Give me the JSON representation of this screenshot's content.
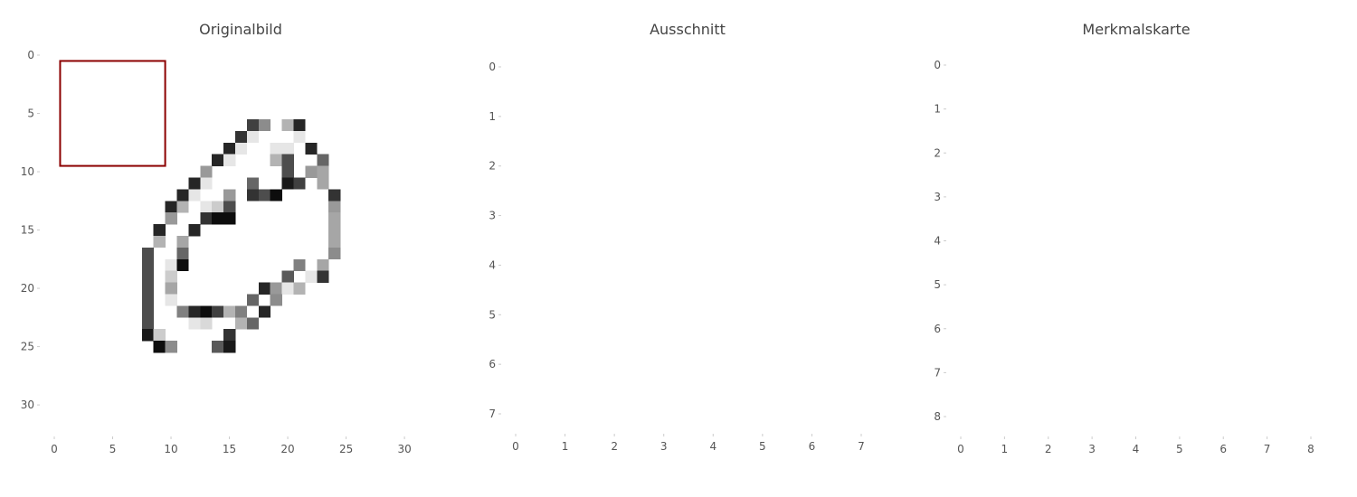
{
  "colors": {
    "background": "#ffffff",
    "ink": "#000000",
    "highlight_box": "#8b0000",
    "tick_text": "#555555",
    "title_text": "#444444"
  },
  "chart_data": [
    {
      "type": "heatmap",
      "title": "Originalbild",
      "colormap": "gray_r",
      "value_range": [
        0,
        1
      ],
      "grid_size": [
        32,
        32
      ],
      "xlim": [
        0,
        31
      ],
      "ylim": [
        0,
        31
      ],
      "x_ticks": [
        "0",
        "5",
        "10",
        "15",
        "20",
        "25",
        "30"
      ],
      "y_ticks": [
        "0",
        "5",
        "10",
        "15",
        "20",
        "25",
        "30"
      ],
      "pixels": [
        {
          "row": 6,
          "col": 17,
          "v": 0.75
        },
        {
          "row": 6,
          "col": 18,
          "v": 0.45
        },
        {
          "row": 6,
          "col": 20,
          "v": 0.3
        },
        {
          "row": 6,
          "col": 21,
          "v": 0.85
        },
        {
          "row": 7,
          "col": 16,
          "v": 0.8
        },
        {
          "row": 7,
          "col": 17,
          "v": 0.1
        },
        {
          "row": 7,
          "col": 21,
          "v": 0.1
        },
        {
          "row": 8,
          "col": 15,
          "v": 0.85
        },
        {
          "row": 8,
          "col": 16,
          "v": 0.1
        },
        {
          "row": 8,
          "col": 19,
          "v": 0.1
        },
        {
          "row": 8,
          "col": 20,
          "v": 0.1
        },
        {
          "row": 8,
          "col": 22,
          "v": 0.85
        },
        {
          "row": 9,
          "col": 14,
          "v": 0.85
        },
        {
          "row": 9,
          "col": 15,
          "v": 0.1
        },
        {
          "row": 9,
          "col": 19,
          "v": 0.3
        },
        {
          "row": 9,
          "col": 20,
          "v": 0.7
        },
        {
          "row": 9,
          "col": 23,
          "v": 0.6
        },
        {
          "row": 10,
          "col": 13,
          "v": 0.4
        },
        {
          "row": 10,
          "col": 20,
          "v": 0.7
        },
        {
          "row": 10,
          "col": 22,
          "v": 0.4
        },
        {
          "row": 10,
          "col": 23,
          "v": 0.35
        },
        {
          "row": 11,
          "col": 12,
          "v": 0.85
        },
        {
          "row": 11,
          "col": 13,
          "v": 0.1
        },
        {
          "row": 11,
          "col": 17,
          "v": 0.6
        },
        {
          "row": 11,
          "col": 20,
          "v": 0.9
        },
        {
          "row": 11,
          "col": 21,
          "v": 0.75
        },
        {
          "row": 11,
          "col": 23,
          "v": 0.35
        },
        {
          "row": 12,
          "col": 11,
          "v": 0.85
        },
        {
          "row": 12,
          "col": 12,
          "v": 0.1
        },
        {
          "row": 12,
          "col": 15,
          "v": 0.4
        },
        {
          "row": 12,
          "col": 17,
          "v": 0.8
        },
        {
          "row": 12,
          "col": 18,
          "v": 0.7
        },
        {
          "row": 12,
          "col": 19,
          "v": 0.95
        },
        {
          "row": 12,
          "col": 24,
          "v": 0.8
        },
        {
          "row": 13,
          "col": 10,
          "v": 0.85
        },
        {
          "row": 13,
          "col": 11,
          "v": 0.3
        },
        {
          "row": 13,
          "col": 13,
          "v": 0.1
        },
        {
          "row": 13,
          "col": 14,
          "v": 0.2
        },
        {
          "row": 13,
          "col": 15,
          "v": 0.7
        },
        {
          "row": 13,
          "col": 24,
          "v": 0.4
        },
        {
          "row": 14,
          "col": 10,
          "v": 0.4
        },
        {
          "row": 14,
          "col": 13,
          "v": 0.8
        },
        {
          "row": 14,
          "col": 14,
          "v": 0.95
        },
        {
          "row": 14,
          "col": 15,
          "v": 0.95
        },
        {
          "row": 14,
          "col": 24,
          "v": 0.35
        },
        {
          "row": 15,
          "col": 9,
          "v": 0.85
        },
        {
          "row": 15,
          "col": 12,
          "v": 0.85
        },
        {
          "row": 15,
          "col": 24,
          "v": 0.35
        },
        {
          "row": 16,
          "col": 9,
          "v": 0.3
        },
        {
          "row": 16,
          "col": 11,
          "v": 0.35
        },
        {
          "row": 16,
          "col": 24,
          "v": 0.35
        },
        {
          "row": 17,
          "col": 8,
          "v": 0.7
        },
        {
          "row": 17,
          "col": 11,
          "v": 0.6
        },
        {
          "row": 17,
          "col": 24,
          "v": 0.45
        },
        {
          "row": 18,
          "col": 8,
          "v": 0.7
        },
        {
          "row": 18,
          "col": 10,
          "v": 0.1
        },
        {
          "row": 18,
          "col": 11,
          "v": 0.95
        },
        {
          "row": 18,
          "col": 21,
          "v": 0.5
        },
        {
          "row": 18,
          "col": 23,
          "v": 0.35
        },
        {
          "row": 19,
          "col": 8,
          "v": 0.7
        },
        {
          "row": 19,
          "col": 10,
          "v": 0.2
        },
        {
          "row": 19,
          "col": 20,
          "v": 0.65
        },
        {
          "row": 19,
          "col": 22,
          "v": 0.1
        },
        {
          "row": 19,
          "col": 23,
          "v": 0.8
        },
        {
          "row": 20,
          "col": 8,
          "v": 0.7
        },
        {
          "row": 20,
          "col": 10,
          "v": 0.35
        },
        {
          "row": 20,
          "col": 18,
          "v": 0.85
        },
        {
          "row": 20,
          "col": 19,
          "v": 0.4
        },
        {
          "row": 20,
          "col": 20,
          "v": 0.1
        },
        {
          "row": 20,
          "col": 21,
          "v": 0.3
        },
        {
          "row": 21,
          "col": 8,
          "v": 0.7
        },
        {
          "row": 21,
          "col": 10,
          "v": 0.1
        },
        {
          "row": 21,
          "col": 17,
          "v": 0.6
        },
        {
          "row": 21,
          "col": 19,
          "v": 0.45
        },
        {
          "row": 22,
          "col": 8,
          "v": 0.7
        },
        {
          "row": 22,
          "col": 11,
          "v": 0.5
        },
        {
          "row": 22,
          "col": 12,
          "v": 0.85
        },
        {
          "row": 22,
          "col": 13,
          "v": 0.95
        },
        {
          "row": 22,
          "col": 14,
          "v": 0.75
        },
        {
          "row": 22,
          "col": 15,
          "v": 0.3
        },
        {
          "row": 22,
          "col": 16,
          "v": 0.5
        },
        {
          "row": 22,
          "col": 18,
          "v": 0.85
        },
        {
          "row": 23,
          "col": 8,
          "v": 0.7
        },
        {
          "row": 23,
          "col": 12,
          "v": 0.1
        },
        {
          "row": 23,
          "col": 13,
          "v": 0.15
        },
        {
          "row": 23,
          "col": 16,
          "v": 0.3
        },
        {
          "row": 23,
          "col": 17,
          "v": 0.6
        },
        {
          "row": 24,
          "col": 8,
          "v": 0.9
        },
        {
          "row": 24,
          "col": 9,
          "v": 0.2
        },
        {
          "row": 24,
          "col": 15,
          "v": 0.8
        },
        {
          "row": 25,
          "col": 9,
          "v": 0.95
        },
        {
          "row": 25,
          "col": 10,
          "v": 0.45
        },
        {
          "row": 25,
          "col": 14,
          "v": 0.65
        },
        {
          "row": 25,
          "col": 15,
          "v": 0.9
        }
      ],
      "highlight_box": {
        "row_start": 1,
        "row_end": 9,
        "col_start": 1,
        "col_end": 9
      }
    },
    {
      "type": "heatmap",
      "title": "Ausschnitt",
      "colormap": "gray_r",
      "value_range": [
        0,
        1
      ],
      "grid_size": [
        8,
        8
      ],
      "xlim": [
        0,
        7
      ],
      "ylim": [
        0,
        7
      ],
      "x_ticks": [
        "0",
        "1",
        "2",
        "3",
        "4",
        "5",
        "6",
        "7"
      ],
      "y_ticks": [
        "0",
        "1",
        "2",
        "3",
        "4",
        "5",
        "6",
        "7"
      ],
      "pixels": []
    },
    {
      "type": "heatmap",
      "title": "Merkmalskarte",
      "colormap": "gray_r",
      "value_range": [
        0,
        1
      ],
      "grid_size": [
        9,
        9
      ],
      "xlim": [
        0,
        8
      ],
      "ylim": [
        0,
        8
      ],
      "x_ticks": [
        "0",
        "1",
        "2",
        "3",
        "4",
        "5",
        "6",
        "7",
        "8"
      ],
      "y_ticks": [
        "0",
        "1",
        "2",
        "3",
        "4",
        "5",
        "6",
        "7",
        "8"
      ],
      "pixels": []
    }
  ]
}
